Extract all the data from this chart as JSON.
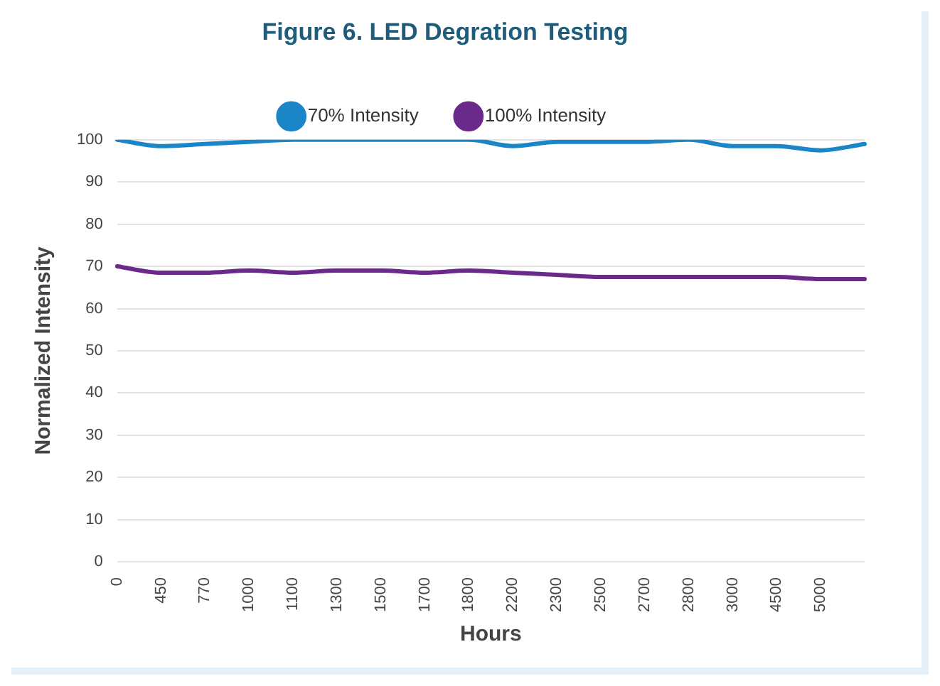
{
  "chart_data": {
    "type": "line",
    "title": "Figure 6. LED Degration Testing",
    "xlabel": "Hours",
    "ylabel": "Normalized Intensity",
    "categories": [
      "0",
      "450",
      "770",
      "1000",
      "1100",
      "1300",
      "1500",
      "1700",
      "1800",
      "2200",
      "2300",
      "2500",
      "2700",
      "2800",
      "3000",
      "4500",
      "5000",
      null
    ],
    "series": [
      {
        "name": "70% Intensity",
        "color": "#1a86c8",
        "values": [
          100,
          98.5,
          99,
          99.5,
          100,
          100,
          100,
          100,
          100,
          98.5,
          99.5,
          99.5,
          99.5,
          100,
          98.5,
          98.5,
          97.5,
          99
        ]
      },
      {
        "name": "100% Intensity",
        "color": "#6a2a8c",
        "values": [
          70,
          68.5,
          68.5,
          69,
          68.5,
          69,
          69,
          68.5,
          69,
          68.5,
          68,
          67.5,
          67.5,
          67.5,
          67.5,
          67.5,
          67,
          67
        ]
      }
    ],
    "ylim": [
      0,
      100
    ],
    "yticks": [
      0,
      10,
      20,
      30,
      40,
      50,
      60,
      70,
      80,
      90,
      100
    ],
    "grid": "y",
    "legend": "top",
    "marker": "none",
    "line_style": "solid"
  }
}
